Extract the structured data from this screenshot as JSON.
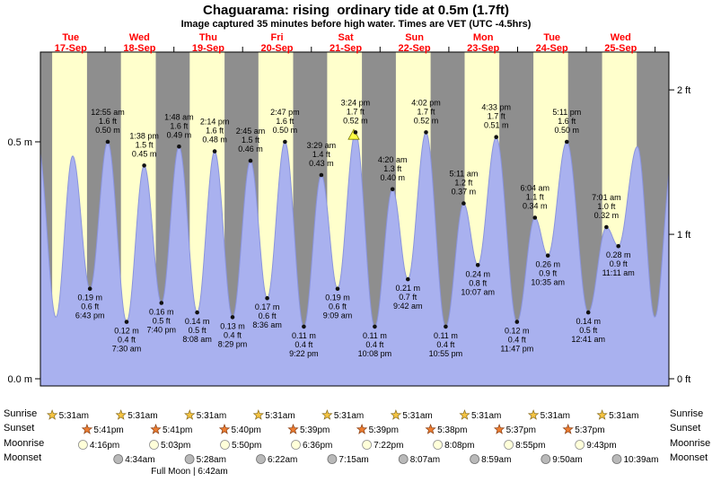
{
  "header": {
    "title": "Chaguarama: rising  ordinary tide at 0.5m (1.7ft)",
    "subtitle": "Image captured 35 minutes before high water. Times are VET (UTC -4.5hrs)"
  },
  "colors": {
    "day_band": "#ffffcc",
    "night_band": "#8e8e8e",
    "tide_fill": "#a9b1ef",
    "tide_stroke": "#8a94dd",
    "date_text": "#ff0000",
    "current_marker": "#ffff44",
    "sunrise_star": "#f5c442",
    "sunset_star": "#ed7d31",
    "moonrise_icon": "#ffffd9",
    "moonset_icon": "#b9b9b9"
  },
  "chart_data": {
    "type": "area",
    "title": "Chaguarama: rising  ordinary tide at 0.5m (1.7ft)",
    "ylabel_left_unit": "m",
    "ylabel_right_unit": "ft",
    "ylim_m": [
      0,
      0.69
    ],
    "y_ticks_m": [
      {
        "label": "0.5 m",
        "value": 0.5
      },
      {
        "label": "0.0 m",
        "value": 0.0
      }
    ],
    "y_ticks_ft": [
      {
        "label": "2 ft",
        "value": 2
      },
      {
        "label": "1 ft",
        "value": 1
      },
      {
        "label": "0 ft",
        "value": 0
      }
    ],
    "days": [
      {
        "dow": "Tue",
        "date": "17-Sep"
      },
      {
        "dow": "Wed",
        "date": "18-Sep"
      },
      {
        "dow": "Thu",
        "date": "19-Sep"
      },
      {
        "dow": "Fri",
        "date": "20-Sep"
      },
      {
        "dow": "Sat",
        "date": "21-Sep"
      },
      {
        "dow": "Sun",
        "date": "22-Sep"
      },
      {
        "dow": "Mon",
        "date": "23-Sep"
      },
      {
        "dow": "Tue",
        "date": "24-Sep"
      },
      {
        "dow": "Wed",
        "date": "25-Sep"
      }
    ],
    "extremes": [
      {
        "day": 0,
        "time": "12:36 am",
        "type": "high",
        "m": 0.49,
        "labeled": false
      },
      {
        "day": 0,
        "time": "6:50 am",
        "type": "low",
        "m": 0.13,
        "labeled": false
      },
      {
        "day": 0,
        "time": "12:40 pm",
        "type": "high",
        "m": 0.47,
        "labeled": false
      },
      {
        "day": 0,
        "time": "6:43 pm",
        "type": "low",
        "m": 0.19,
        "ft": 0.6,
        "labeled": true
      },
      {
        "day": 1,
        "time": "12:55 am",
        "type": "high",
        "m": 0.5,
        "ft": 1.6,
        "labeled": true
      },
      {
        "day": 1,
        "time": "7:30 am",
        "type": "low",
        "m": 0.12,
        "ft": 0.4,
        "labeled": true
      },
      {
        "day": 1,
        "time": "1:38 pm",
        "type": "high",
        "m": 0.45,
        "ft": 1.5,
        "labeled": true
      },
      {
        "day": 1,
        "time": "7:40 pm",
        "type": "low",
        "m": 0.16,
        "ft": 0.5,
        "labeled": true
      },
      {
        "day": 2,
        "time": "1:48 am",
        "type": "high",
        "m": 0.49,
        "ft": 1.6,
        "labeled": true
      },
      {
        "day": 2,
        "time": "8:08 am",
        "type": "low",
        "m": 0.14,
        "ft": 0.5,
        "labeled": true
      },
      {
        "day": 2,
        "time": "2:14 pm",
        "type": "high",
        "m": 0.48,
        "ft": 1.6,
        "labeled": true
      },
      {
        "day": 2,
        "time": "8:29 pm",
        "type": "low",
        "m": 0.13,
        "ft": 0.4,
        "labeled": true
      },
      {
        "day": 3,
        "time": "2:45 am",
        "type": "high",
        "m": 0.46,
        "ft": 1.5,
        "labeled": true
      },
      {
        "day": 3,
        "time": "8:36 am",
        "type": "low",
        "m": 0.17,
        "ft": 0.6,
        "labeled": true
      },
      {
        "day": 3,
        "time": "2:47 pm",
        "type": "high",
        "m": 0.5,
        "ft": 1.6,
        "labeled": true
      },
      {
        "day": 3,
        "time": "9:22 pm",
        "type": "low",
        "m": 0.11,
        "ft": 0.4,
        "labeled": true
      },
      {
        "day": 4,
        "time": "3:29 am",
        "type": "high",
        "m": 0.43,
        "ft": 1.4,
        "labeled": true
      },
      {
        "day": 4,
        "time": "9:09 am",
        "type": "low",
        "m": 0.19,
        "ft": 0.6,
        "labeled": true
      },
      {
        "day": 4,
        "time": "3:24 pm",
        "type": "high",
        "m": 0.52,
        "ft": 1.7,
        "labeled": true,
        "marker": true
      },
      {
        "day": 4,
        "time": "10:08 pm",
        "type": "low",
        "m": 0.11,
        "ft": 0.4,
        "labeled": true
      },
      {
        "day": 5,
        "time": "4:20 am",
        "type": "high",
        "m": 0.4,
        "ft": 1.3,
        "labeled": true
      },
      {
        "day": 5,
        "time": "9:42 am",
        "type": "low",
        "m": 0.21,
        "ft": 0.7,
        "labeled": true
      },
      {
        "day": 5,
        "time": "4:02 pm",
        "type": "high",
        "m": 0.52,
        "ft": 1.7,
        "labeled": true
      },
      {
        "day": 5,
        "time": "10:55 pm",
        "type": "low",
        "m": 0.11,
        "ft": 0.4,
        "labeled": true
      },
      {
        "day": 6,
        "time": "5:11 am",
        "type": "high",
        "m": 0.37,
        "ft": 1.2,
        "labeled": true
      },
      {
        "day": 6,
        "time": "10:07 am",
        "type": "low",
        "m": 0.24,
        "ft": 0.8,
        "labeled": true
      },
      {
        "day": 6,
        "time": "4:33 pm",
        "type": "high",
        "m": 0.51,
        "ft": 1.7,
        "labeled": true
      },
      {
        "day": 6,
        "time": "11:47 pm",
        "type": "low",
        "m": 0.12,
        "ft": 0.4,
        "labeled": true
      },
      {
        "day": 7,
        "time": "6:04 am",
        "type": "high",
        "m": 0.34,
        "ft": 1.1,
        "labeled": true
      },
      {
        "day": 7,
        "time": "10:35 am",
        "type": "low",
        "m": 0.26,
        "ft": 0.9,
        "labeled": true
      },
      {
        "day": 7,
        "time": "5:11 pm",
        "type": "high",
        "m": 0.5,
        "ft": 1.6,
        "labeled": true
      },
      {
        "day": 8,
        "time": "12:41 am",
        "type": "low",
        "m": 0.14,
        "ft": 0.5,
        "labeled": true
      },
      {
        "day": 8,
        "time": "7:01 am",
        "type": "high",
        "m": 0.32,
        "ft": 1.0,
        "labeled": true
      },
      {
        "day": 8,
        "time": "11:11 am",
        "type": "low",
        "m": 0.28,
        "ft": 0.9,
        "labeled": true
      },
      {
        "day": 8,
        "time": "5:50 pm",
        "type": "high",
        "m": 0.49,
        "labeled": false
      },
      {
        "day": 8,
        "time": "11:55 pm",
        "type": "low",
        "m": 0.13,
        "labeled": false
      },
      {
        "day": 9,
        "time": "6:10 am",
        "type": "high",
        "m": 0.47,
        "labeled": false
      }
    ],
    "current_marker": {
      "day": 4,
      "time": "2:49 pm"
    }
  },
  "astro": {
    "row_labels": [
      "Sunrise",
      "Sunset",
      "Moonrise",
      "Moonset"
    ],
    "sunrise": {
      "start_day": 0,
      "times": [
        "5:31am",
        "5:31am",
        "5:31am",
        "5:31am",
        "5:31am",
        "5:31am",
        "5:31am",
        "5:31am",
        "5:31am"
      ]
    },
    "sunset": {
      "start_day": 0,
      "times": [
        "5:41pm",
        "5:41pm",
        "5:40pm",
        "5:39pm",
        "5:39pm",
        "5:38pm",
        "5:37pm",
        "5:37pm"
      ]
    },
    "moonrise": {
      "start_day": 0,
      "times": [
        "4:16pm",
        "5:03pm",
        "5:50pm",
        "6:36pm",
        "7:22pm",
        "8:08pm",
        "8:55pm",
        "9:43pm"
      ]
    },
    "moonset": {
      "start_day": 1,
      "times": [
        "4:34am",
        "5:28am",
        "6:22am",
        "7:15am",
        "8:07am",
        "8:59am",
        "9:50am",
        "10:39am"
      ]
    },
    "full_moon": "Full Moon | 6:42am"
  }
}
